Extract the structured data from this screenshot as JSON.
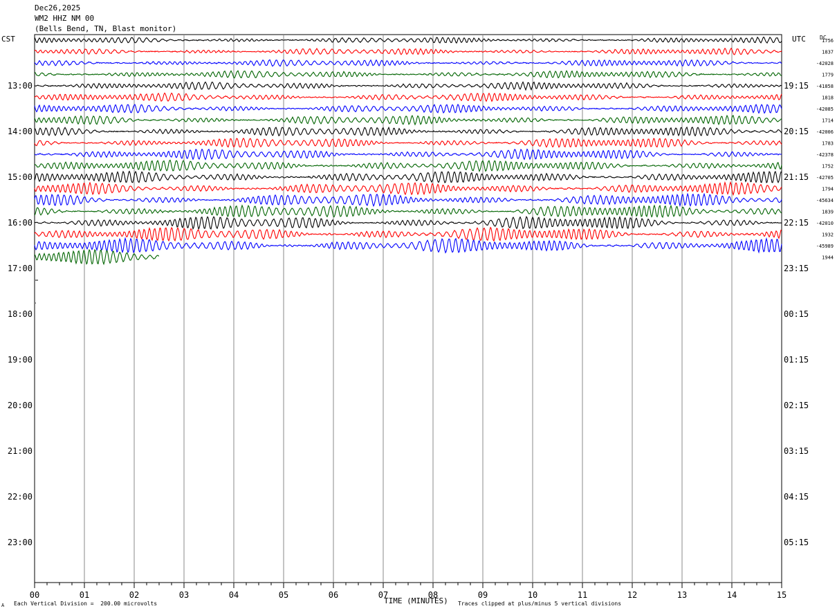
{
  "header": {
    "date": "Dec26,2025",
    "station": "WM2 HHZ NM 00",
    "location": "(Bells Bend, TN, Blast monitor)"
  },
  "axes": {
    "left_timezone": "CST",
    "right_timezone": "UTC",
    "dc_label": "DC",
    "xlabel": "TIME (MINUTES)",
    "x_ticks": [
      "00",
      "01",
      "02",
      "03",
      "04",
      "05",
      "06",
      "07",
      "08",
      "09",
      "10",
      "11",
      "12",
      "13",
      "14",
      "15"
    ],
    "left_hour_labels": [
      "13:00",
      "14:00",
      "15:00",
      "16:00",
      "17:00",
      "18:00",
      "19:00",
      "20:00",
      "21:00",
      "22:00",
      "23:00"
    ],
    "right_hour_labels": [
      "19:15",
      "20:15",
      "21:15",
      "22:15",
      "23:15",
      "00:15",
      "01:15",
      "02:15",
      "03:15",
      "04:15",
      "05:15"
    ]
  },
  "footer": {
    "scale_note": "Each Vertical Division =  200.00 microvolts",
    "clip_note": "Traces clipped at plus/minus 5 vertical divisions",
    "corner_mark": "A"
  },
  "chart_data": {
    "type": "line",
    "title": "WM2 HHZ NM 00",
    "xlabel": "TIME (MINUTES)",
    "xlim": [
      0,
      15
    ],
    "trace_colors": [
      "#000000",
      "#ff0000",
      "#0000ff",
      "#006400"
    ],
    "traces_per_hour": 4,
    "minutes_per_trace": 15,
    "first_trace_start_cst": "12:00",
    "completed_traces": 19,
    "partial_trace_end_minute": 2.5,
    "dc_offsets": [
      "1756",
      "1837",
      "-42028",
      "1779",
      "-41858",
      "1818",
      "-42085",
      "1714",
      "-42006",
      "1783",
      "-42378",
      "1752",
      "-42705",
      "1794",
      "-45634",
      "1839",
      "-42010",
      "1932",
      "-45989",
      "1944"
    ],
    "series": [
      {
        "name": "trace 12:00",
        "color": "#000000",
        "dc": "1756"
      },
      {
        "name": "trace 12:15",
        "color": "#ff0000",
        "dc": "1837"
      },
      {
        "name": "trace 12:30",
        "color": "#0000ff",
        "dc": "-42028"
      },
      {
        "name": "trace 12:45",
        "color": "#006400",
        "dc": "1779"
      },
      {
        "name": "trace 13:00",
        "color": "#000000",
        "dc": "-41858"
      },
      {
        "name": "trace 13:15",
        "color": "#ff0000",
        "dc": "1818"
      },
      {
        "name": "trace 13:30",
        "color": "#0000ff",
        "dc": "-42085"
      },
      {
        "name": "trace 13:45",
        "color": "#006400",
        "dc": "1714"
      },
      {
        "name": "trace 14:00",
        "color": "#000000",
        "dc": "-42006"
      },
      {
        "name": "trace 14:15",
        "color": "#ff0000",
        "dc": "1783"
      },
      {
        "name": "trace 14:30",
        "color": "#0000ff",
        "dc": "-42378"
      },
      {
        "name": "trace 14:45",
        "color": "#006400",
        "dc": "1752"
      },
      {
        "name": "trace 15:00",
        "color": "#000000",
        "dc": "-42705"
      },
      {
        "name": "trace 15:15",
        "color": "#ff0000",
        "dc": "1794"
      },
      {
        "name": "trace 15:30",
        "color": "#0000ff",
        "dc": "-45634"
      },
      {
        "name": "trace 15:45",
        "color": "#006400",
        "dc": "1839"
      },
      {
        "name": "trace 16:00",
        "color": "#000000",
        "dc": "-42010"
      },
      {
        "name": "trace 16:15",
        "color": "#ff0000",
        "dc": "1932"
      },
      {
        "name": "trace 16:30",
        "color": "#0000ff",
        "dc": "-45989"
      },
      {
        "name": "trace 16:45",
        "color": "#006400",
        "dc": "1944"
      }
    ]
  }
}
